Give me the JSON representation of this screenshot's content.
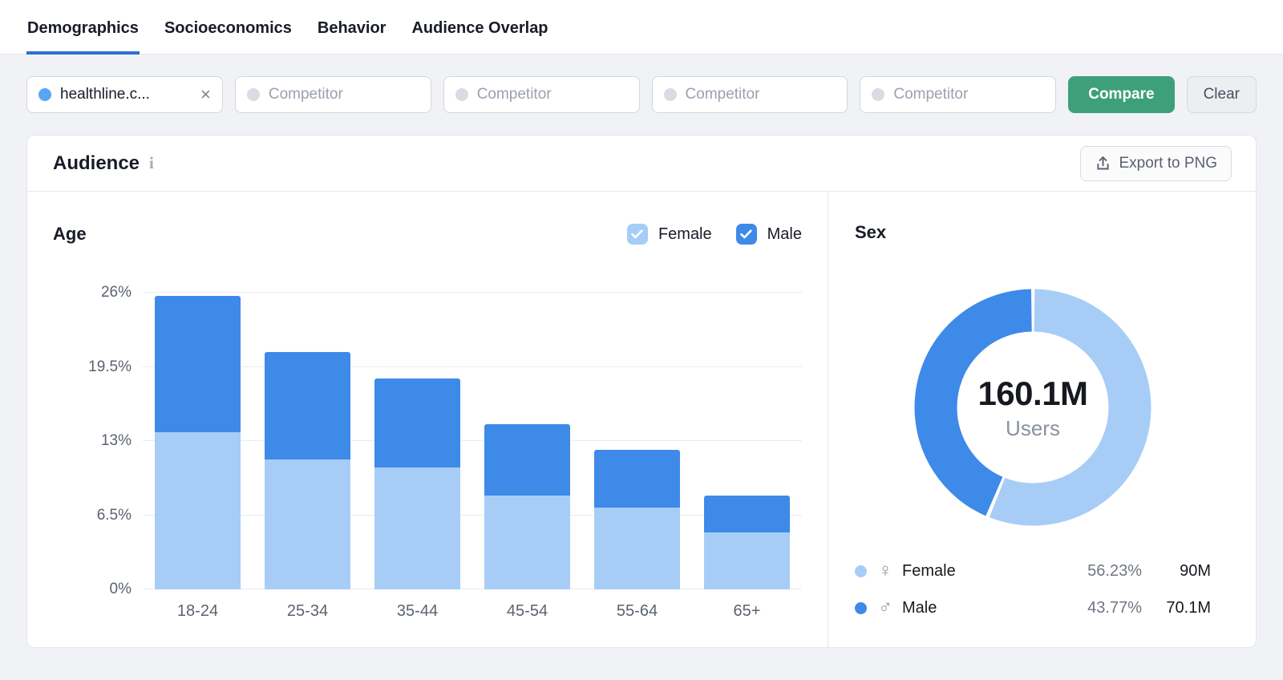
{
  "tabs": [
    {
      "label": "Demographics",
      "active": true
    },
    {
      "label": "Socioeconomics",
      "active": false
    },
    {
      "label": "Behavior",
      "active": false
    },
    {
      "label": "Audience Overlap",
      "active": false
    }
  ],
  "filters": {
    "main_domain_value": "healthline.c...",
    "main_domain_dot_color": "#57A6F3",
    "competitors": [
      "Competitor",
      "Competitor",
      "Competitor",
      "Competitor"
    ],
    "compare_label": "Compare",
    "clear_label": "Clear"
  },
  "audience": {
    "title": "Audience",
    "export_label": "Export to PNG"
  },
  "colors": {
    "female": "#A7CDF7",
    "male": "#3E8AE8",
    "accent_green": "#3EA07A",
    "tab_underline": "#2E6FD0"
  },
  "chart_data": [
    {
      "type": "bar",
      "subtype": "stacked",
      "title": "Age",
      "categories": [
        "18-24",
        "25-34",
        "35-44",
        "45-54",
        "55-64",
        "65+"
      ],
      "series": [
        {
          "name": "Female",
          "color": "#A7CDF7",
          "checked": true,
          "values": [
            13.8,
            11.4,
            10.7,
            8.2,
            7.2,
            5.0
          ]
        },
        {
          "name": "Male",
          "color": "#3E8AE8",
          "checked": true,
          "values": [
            11.9,
            9.4,
            7.8,
            6.3,
            5.0,
            3.2
          ]
        }
      ],
      "y_ticks": [
        "0%",
        "6.5%",
        "13%",
        "19.5%",
        "26%"
      ],
      "ylim": [
        0,
        26
      ],
      "unit": "%",
      "grid": true,
      "legend_position": "top-right"
    },
    {
      "type": "pie",
      "subtype": "donut",
      "title": "Sex",
      "center_value": "160.1M",
      "center_label": "Users",
      "slices": [
        {
          "name": "Female",
          "symbol": "♀",
          "percent": 56.23,
          "percent_label": "56.23%",
          "value_label": "90M",
          "color": "#A7CDF7"
        },
        {
          "name": "Male",
          "symbol": "♂",
          "percent": 43.77,
          "percent_label": "43.77%",
          "value_label": "70.1M",
          "color": "#3E8AE8"
        }
      ],
      "legend_position": "bottom"
    }
  ]
}
